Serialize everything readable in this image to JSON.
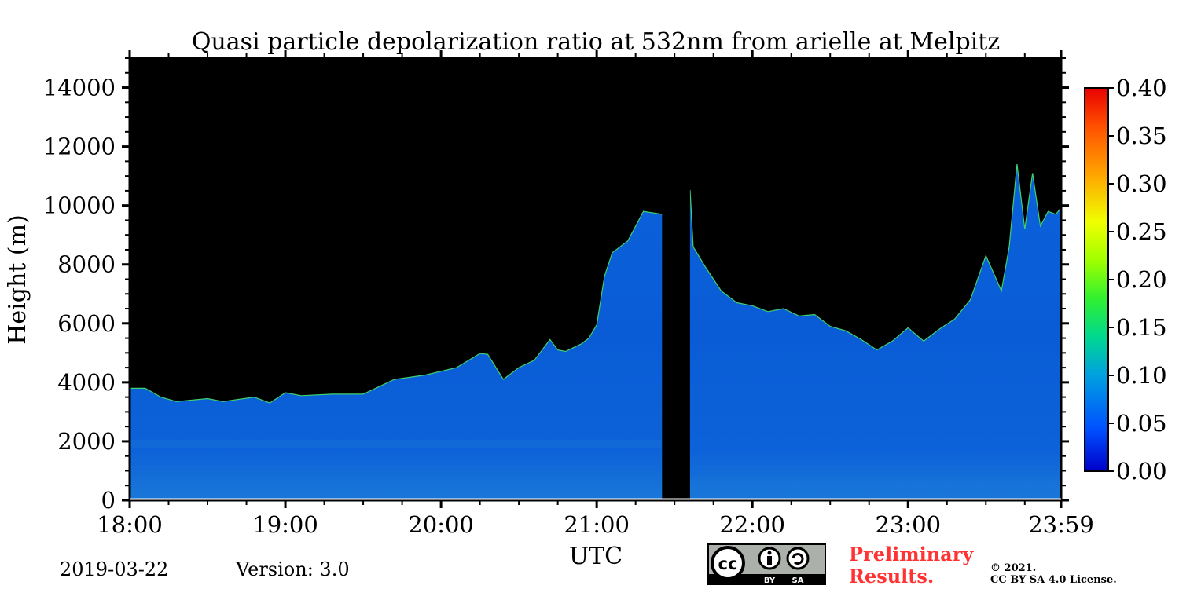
{
  "chart_data": {
    "type": "heatmap",
    "title": "Quasi particle depolarization ratio at 532nm from arielle at Melpitz",
    "xlabel": "UTC",
    "ylabel": "Height (m)",
    "xlim": [
      "18:00",
      "23:59"
    ],
    "ylim": [
      0,
      15000
    ],
    "x_ticks": [
      "18:00",
      "19:00",
      "20:00",
      "21:00",
      "22:00",
      "23:00",
      "23:59"
    ],
    "y_ticks": [
      "0",
      "2000",
      "4000",
      "6000",
      "8000",
      "10000",
      "12000",
      "14000"
    ],
    "colorbar": {
      "range": [
        0.0,
        0.4
      ],
      "ticks": [
        "0.00",
        "0.05",
        "0.10",
        "0.15",
        "0.20",
        "0.25",
        "0.30",
        "0.35",
        "0.40"
      ],
      "colormap": "jet"
    },
    "background_color": "#000000",
    "dominant_value": 0.02,
    "data_gap": {
      "start_hours": 21.42,
      "end_hours": 21.6
    },
    "signal_top_height": {
      "x_hours": [
        18.0,
        18.1,
        18.2,
        18.3,
        18.5,
        18.6,
        18.8,
        18.9,
        19.0,
        19.1,
        19.3,
        19.5,
        19.7,
        19.9,
        20.1,
        20.25,
        20.3,
        20.4,
        20.5,
        20.6,
        20.7,
        20.75,
        20.8,
        20.9,
        20.95,
        21.0,
        21.05,
        21.1,
        21.2,
        21.3,
        21.42,
        21.6,
        21.62,
        21.7,
        21.8,
        21.9,
        22.0,
        22.1,
        22.2,
        22.3,
        22.4,
        22.5,
        22.6,
        22.7,
        22.8,
        22.9,
        23.0,
        23.1,
        23.2,
        23.3,
        23.4,
        23.5,
        23.6,
        23.65,
        23.7,
        23.75,
        23.8,
        23.85,
        23.9,
        23.95,
        23.98
      ],
      "heights_m": [
        3800,
        3800,
        3500,
        3350,
        3450,
        3350,
        3500,
        3300,
        3650,
        3550,
        3600,
        3600,
        4100,
        4250,
        4500,
        4980,
        4950,
        4100,
        4500,
        4750,
        5450,
        5100,
        5050,
        5300,
        5500,
        5950,
        7600,
        8400,
        8800,
        9800,
        9700,
        10500,
        8600,
        7900,
        7100,
        6700,
        6600,
        6400,
        6500,
        6250,
        6300,
        5900,
        5750,
        5450,
        5100,
        5400,
        5850,
        5400,
        5800,
        6150,
        6800,
        8300,
        7100,
        8600,
        11400,
        9200,
        11100,
        9300,
        9800,
        9700,
        9900
      ]
    }
  },
  "footer": {
    "date": "2019-03-22",
    "version": "Version: 3.0",
    "preliminary_line1": "Preliminary",
    "preliminary_line2": "Results.",
    "license_line1": "©  2021.",
    "license_line2": "CC BY SA 4.0 License.",
    "cc_badge": {
      "cc": "cc",
      "by": "BY",
      "sa": "SA"
    }
  },
  "colors": {
    "signal_blue": "#0a5fd8",
    "background": "#000000",
    "preliminary_red": "#ff3333"
  }
}
